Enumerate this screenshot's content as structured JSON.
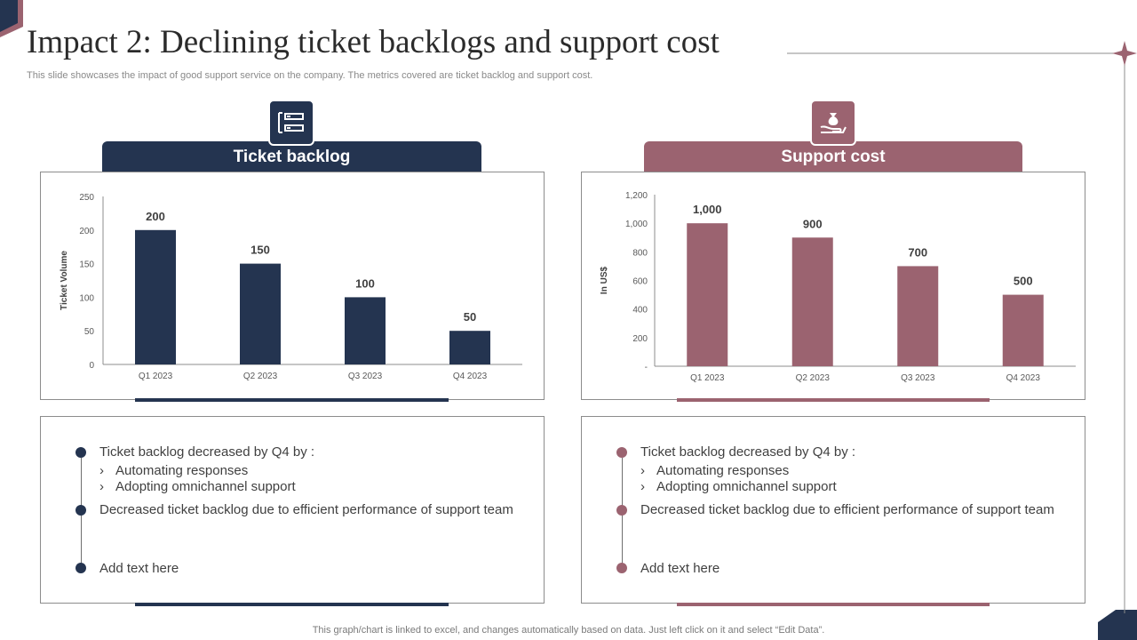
{
  "page": {
    "title": "Impact 2: Declining ticket backlogs and support cost",
    "subtitle": "This slide showcases the impact of good support service on the company. The metrics covered are ticket backlog and support cost.",
    "footer": "This graph/chart is linked to excel,  and changes automatically based on data. Just left click on it and select “Edit Data”."
  },
  "colors": {
    "navy": "#243450",
    "mauve": "#9b6370",
    "axis": "#8c8c8c",
    "label": "#404040"
  },
  "left_section": {
    "header": "Ticket backlog",
    "icon": "document-list-icon",
    "notes": {
      "item1": "Ticket backlog decreased by Q4 by :",
      "sub1": "Automating responses",
      "sub2": "Adopting omnichannel support",
      "item2": "Decreased ticket backlog due to efficient performance of support team",
      "item3": "Add text here"
    }
  },
  "right_section": {
    "header": "Support cost",
    "icon": "money-bag-hand-icon",
    "notes": {
      "item1": "Ticket backlog decreased by Q4 by :",
      "sub1": "Automating responses",
      "sub2": "Adopting omnichannel support",
      "item2": "Decreased ticket backlog due to efficient performance of support team",
      "item3": "Add text here"
    }
  },
  "chart_data": [
    {
      "type": "bar",
      "categories": [
        "Q1 2023",
        "Q2 2023",
        "Q3 2023",
        "Q4 2023"
      ],
      "values": [
        200,
        150,
        100,
        50
      ],
      "data_labels": [
        "200",
        "150",
        "100",
        "50"
      ],
      "ylabel": "Ticket Volume",
      "xlabel": "",
      "ylim": [
        0,
        250
      ],
      "yticks": [
        0,
        50,
        100,
        150,
        200,
        250
      ],
      "ytick_labels": [
        "0",
        "50",
        "100",
        "150",
        "200",
        "250"
      ],
      "color": "#243450",
      "grid": false
    },
    {
      "type": "bar",
      "categories": [
        "Q1 2023",
        "Q2 2023",
        "Q3 2023",
        "Q4 2023"
      ],
      "values": [
        1000,
        900,
        700,
        500
      ],
      "data_labels": [
        "1,000",
        "900",
        "700",
        "500"
      ],
      "ylabel": "In US$",
      "xlabel": "",
      "ylim": [
        0,
        1200
      ],
      "yticks": [
        0,
        200,
        400,
        600,
        800,
        1000,
        1200
      ],
      "ytick_labels": [
        "-",
        "200",
        "400",
        "600",
        "800",
        "1,000",
        "1,200"
      ],
      "color": "#9b6370",
      "grid": false
    }
  ]
}
